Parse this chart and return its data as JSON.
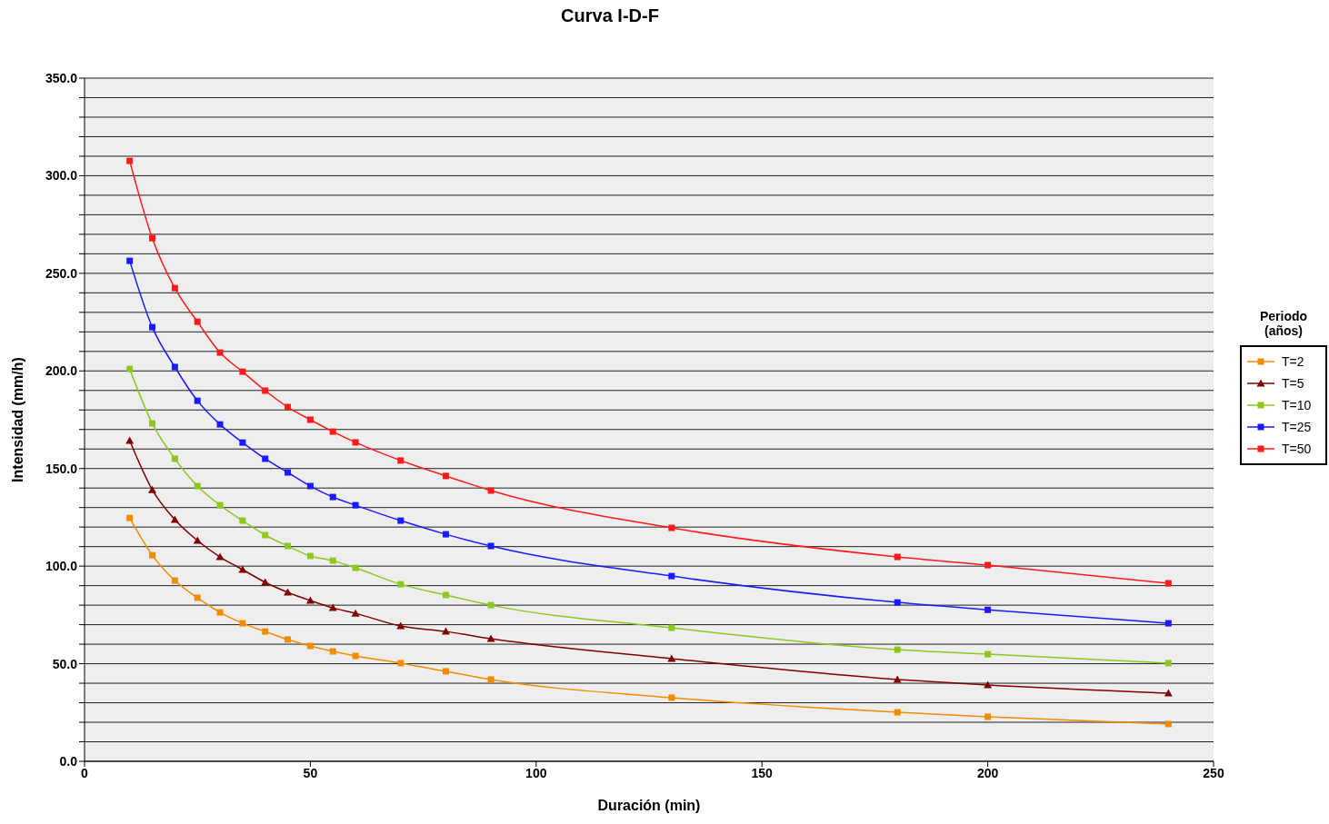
{
  "chart_data": {
    "type": "line",
    "title": "Curva I-D-F",
    "xlabel": "Duración (min)",
    "ylabel": "Intensidad (mm/h)",
    "legend_title": "Periodo (años)",
    "legend": "right",
    "grid": "y",
    "x": [
      10,
      15,
      20,
      25,
      30,
      35,
      40,
      45,
      50,
      55,
      60,
      70,
      80,
      90,
      130,
      180,
      200,
      240
    ],
    "xlim": [
      0,
      250
    ],
    "xticks": [
      0,
      50,
      100,
      150,
      200,
      250
    ],
    "ylim": [
      0,
      350
    ],
    "yticks": [
      {
        "value": 0,
        "label": "0.0"
      },
      {
        "value": 10,
        "label": null
      },
      {
        "value": 20,
        "label": null
      },
      {
        "value": 30,
        "label": null
      },
      {
        "value": 40,
        "label": null
      },
      {
        "value": 50,
        "label": "50.0"
      },
      {
        "value": 60,
        "label": null
      },
      {
        "value": 70,
        "label": null
      },
      {
        "value": 80,
        "label": null
      },
      {
        "value": 90,
        "label": null
      },
      {
        "value": 100,
        "label": "100.0"
      },
      {
        "value": 110,
        "label": null
      },
      {
        "value": 120,
        "label": null
      },
      {
        "value": 130,
        "label": null
      },
      {
        "value": 140,
        "label": null
      },
      {
        "value": 150,
        "label": "150.0"
      },
      {
        "value": 160,
        "label": null
      },
      {
        "value": 170,
        "label": null
      },
      {
        "value": 180,
        "label": null
      },
      {
        "value": 190,
        "label": null
      },
      {
        "value": 200,
        "label": "200.0"
      },
      {
        "value": 210,
        "label": null
      },
      {
        "value": 220,
        "label": null
      },
      {
        "value": 230,
        "label": null
      },
      {
        "value": 240,
        "label": null
      },
      {
        "value": 250,
        "label": "250.0"
      },
      {
        "value": 260,
        "label": null
      },
      {
        "value": 270,
        "label": null
      },
      {
        "value": 280,
        "label": null
      },
      {
        "value": 290,
        "label": null
      },
      {
        "value": 300,
        "label": "300.0"
      },
      {
        "value": 310,
        "label": null
      },
      {
        "value": 320,
        "label": null
      },
      {
        "value": 330,
        "label": null
      },
      {
        "value": 340,
        "label": null
      },
      {
        "value": 350,
        "label": "350.0"
      }
    ],
    "line_style": "solid",
    "series": [
      {
        "name": "T=2",
        "color": "#f08c00",
        "marker": "square",
        "values": [
          124.7,
          105.6,
          92.6,
          83.8,
          76.3,
          70.7,
          66.5,
          62.4,
          59.1,
          56.3,
          54,
          50.3,
          46.1,
          41.9,
          32.6,
          25.1,
          22.8,
          19.1
        ]
      },
      {
        "name": "T=5",
        "color": "#800000",
        "marker": "triangle",
        "values": [
          164.3,
          139.1,
          123.8,
          113.1,
          104.7,
          98.2,
          91.7,
          86.6,
          82.4,
          78.6,
          75.8,
          69.3,
          66.5,
          62.8,
          52.6,
          41.9,
          39.1,
          34.9
        ]
      },
      {
        "name": "T=10",
        "color": "#8cc820",
        "marker": "square",
        "values": [
          201,
          173.1,
          155,
          141,
          131.2,
          123.3,
          115.9,
          110.3,
          105.2,
          102.8,
          99.1,
          90.7,
          85.2,
          80,
          68.4,
          57.2,
          54.9,
          50.3
        ]
      },
      {
        "name": "T=25",
        "color": "#1a1aff",
        "marker": "square",
        "values": [
          256.4,
          222.4,
          202,
          184.7,
          172.6,
          163.3,
          155,
          148,
          141,
          135.4,
          131.2,
          123.3,
          116.3,
          110.3,
          94.9,
          81.4,
          77.6,
          70.7
        ]
      },
      {
        "name": "T=50",
        "color": "#ff1a1a",
        "marker": "square",
        "values": [
          307.6,
          268,
          242.4,
          225.2,
          209.4,
          199.6,
          189.9,
          181.5,
          175,
          168.9,
          163.4,
          154.1,
          146.2,
          138.7,
          119.6,
          104.7,
          100.5,
          91.2
        ]
      }
    ]
  }
}
